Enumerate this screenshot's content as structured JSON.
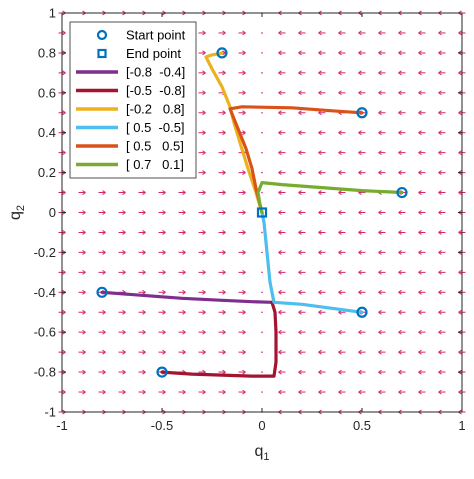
{
  "chart_data": {
    "type": "line",
    "title": "",
    "xlabel": "q",
    "xlabel_sub": "1",
    "ylabel": "q",
    "ylabel_sub": "2",
    "xlim": [
      -1,
      1
    ],
    "ylim": [
      -1,
      1
    ],
    "xticks": [
      "-1",
      "-0.5",
      "0",
      "0.5",
      "1"
    ],
    "yticks": [
      "-1",
      "-0.8",
      "-0.6",
      "-0.4",
      "-0.2",
      "0",
      "0.2",
      "0.4",
      "0.6",
      "0.8",
      "1"
    ],
    "grid": false,
    "legend_placement": "top-left",
    "vector_field_color": "#d6276e",
    "start_marker_color": "#0072bd",
    "end_marker_color": "#0072bd",
    "legend": {
      "start_label": "Start point",
      "end_label": "End point"
    },
    "series": [
      {
        "name": "[-0.8  -0.4]",
        "color": "#7e2f8e",
        "x": [
          -0.8,
          -0.6,
          -0.4,
          -0.2,
          -0.05,
          0.05
        ],
        "y": [
          -0.4,
          -0.415,
          -0.43,
          -0.44,
          -0.447,
          -0.45
        ]
      },
      {
        "name": "[-0.5  -0.8]",
        "color": "#a2142f",
        "x": [
          -0.5,
          -0.35,
          -0.2,
          -0.05,
          0.06,
          0.07,
          0.07,
          0.065,
          0.05
        ],
        "y": [
          -0.8,
          -0.81,
          -0.815,
          -0.82,
          -0.82,
          -0.75,
          -0.6,
          -0.5,
          -0.45
        ]
      },
      {
        "name": "[-0.2   0.8]",
        "color": "#edb120",
        "x": [
          -0.2,
          -0.25,
          -0.28,
          -0.25,
          -0.2,
          -0.16,
          -0.14,
          -0.11,
          -0.07,
          -0.03,
          0.0
        ],
        "y": [
          0.8,
          0.79,
          0.78,
          0.72,
          0.63,
          0.53,
          0.45,
          0.35,
          0.22,
          0.1,
          0.0
        ]
      },
      {
        "name": "[ 0.5  -0.5]",
        "color": "#4dbeee",
        "x": [
          0.5,
          0.35,
          0.2,
          0.06,
          0.04,
          0.03,
          0.02,
          0.01,
          0.0
        ],
        "y": [
          -0.5,
          -0.48,
          -0.46,
          -0.45,
          -0.35,
          -0.25,
          -0.15,
          -0.05,
          0.0
        ]
      },
      {
        "name": "[ 0.5   0.5]",
        "color": "#d95319",
        "x": [
          0.5,
          0.35,
          0.15,
          -0.1,
          -0.16,
          -0.12,
          -0.08,
          -0.05,
          -0.03,
          0.0
        ],
        "y": [
          0.5,
          0.51,
          0.525,
          0.53,
          0.52,
          0.42,
          0.32,
          0.22,
          0.12,
          0.0
        ]
      },
      {
        "name": "[ 0.7   0.1]",
        "color": "#77ac30",
        "x": [
          0.7,
          0.5,
          0.3,
          0.1,
          0.0,
          -0.02,
          -0.01,
          0.0
        ],
        "y": [
          0.1,
          0.11,
          0.125,
          0.14,
          0.15,
          0.1,
          0.04,
          0.0
        ]
      }
    ]
  }
}
